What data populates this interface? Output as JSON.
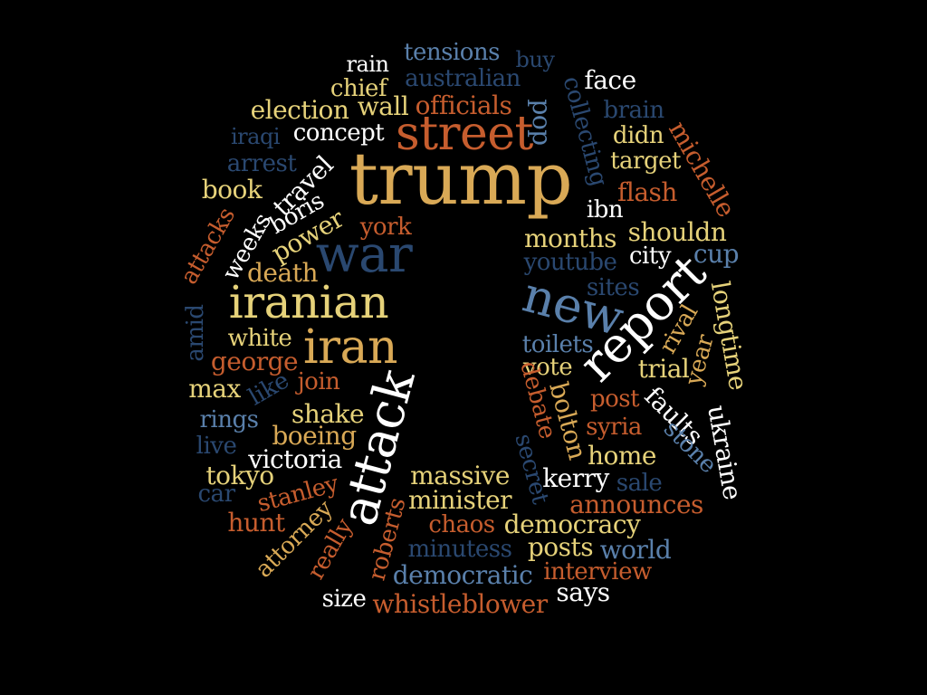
{
  "palette": {
    "background": "#000000",
    "gold": "#d9a956",
    "yellow": "#e6d27a",
    "orange": "#c65d2e",
    "blue": "#5a80ab",
    "navy": "#2a4870",
    "white": "#ffffff"
  },
  "words": [
    {
      "id": "trump",
      "text": "trump",
      "color": "gold"
    },
    {
      "id": "street",
      "text": "street",
      "color": "orange"
    },
    {
      "id": "war",
      "text": "war",
      "color": "navy"
    },
    {
      "id": "iranian",
      "text": "iranian",
      "color": "yellow"
    },
    {
      "id": "iran",
      "text": "iran",
      "color": "gold"
    },
    {
      "id": "attack",
      "text": "attack",
      "color": "white"
    },
    {
      "id": "new",
      "text": "new",
      "color": "blue"
    },
    {
      "id": "report",
      "text": "report",
      "color": "white"
    },
    {
      "id": "tensions",
      "text": "tensions",
      "color": "blue"
    },
    {
      "id": "buy",
      "text": "buy",
      "color": "navy"
    },
    {
      "id": "rain",
      "text": "rain",
      "color": "white"
    },
    {
      "id": "australian",
      "text": "australian",
      "color": "navy"
    },
    {
      "id": "chief",
      "text": "chief",
      "color": "yellow"
    },
    {
      "id": "face",
      "text": "face",
      "color": "white"
    },
    {
      "id": "election",
      "text": "election",
      "color": "yellow"
    },
    {
      "id": "wall",
      "text": "wall",
      "color": "yellow"
    },
    {
      "id": "officials",
      "text": "officials",
      "color": "orange"
    },
    {
      "id": "pop",
      "text": "pop",
      "color": "blue"
    },
    {
      "id": "collecting",
      "text": "collecting",
      "color": "navy"
    },
    {
      "id": "brain",
      "text": "brain",
      "color": "navy"
    },
    {
      "id": "iraqi",
      "text": "iraqi",
      "color": "navy"
    },
    {
      "id": "concept",
      "text": "concept",
      "color": "white"
    },
    {
      "id": "didn",
      "text": "didn",
      "color": "yellow"
    },
    {
      "id": "michelle",
      "text": "michelle",
      "color": "orange"
    },
    {
      "id": "arrest",
      "text": "arrest",
      "color": "navy"
    },
    {
      "id": "target",
      "text": "target",
      "color": "yellow"
    },
    {
      "id": "book",
      "text": "book",
      "color": "yellow"
    },
    {
      "id": "travel",
      "text": "travel",
      "color": "white"
    },
    {
      "id": "flash",
      "text": "flash",
      "color": "orange"
    },
    {
      "id": "boris",
      "text": "boris",
      "color": "white"
    },
    {
      "id": "ibn",
      "text": "ibn",
      "color": "white"
    },
    {
      "id": "attacks",
      "text": "attacks",
      "color": "orange"
    },
    {
      "id": "weeks",
      "text": "weeks",
      "color": "white"
    },
    {
      "id": "power",
      "text": "power",
      "color": "yellow"
    },
    {
      "id": "york",
      "text": "york",
      "color": "orange"
    },
    {
      "id": "months",
      "text": "months",
      "color": "yellow"
    },
    {
      "id": "shouldn",
      "text": "shouldn",
      "color": "yellow"
    },
    {
      "id": "city",
      "text": "city",
      "color": "white"
    },
    {
      "id": "cup",
      "text": "cup",
      "color": "blue"
    },
    {
      "id": "death",
      "text": "death",
      "color": "gold"
    },
    {
      "id": "youtube",
      "text": "youtube",
      "color": "navy"
    },
    {
      "id": "sites",
      "text": "sites",
      "color": "navy"
    },
    {
      "id": "longtime",
      "text": "longtime",
      "color": "yellow"
    },
    {
      "id": "amid",
      "text": "amid",
      "color": "navy"
    },
    {
      "id": "rival",
      "text": "rival",
      "color": "gold"
    },
    {
      "id": "white",
      "text": "white",
      "color": "yellow"
    },
    {
      "id": "toilets",
      "text": "toilets",
      "color": "blue"
    },
    {
      "id": "year",
      "text": "year",
      "color": "gold"
    },
    {
      "id": "george",
      "text": "george",
      "color": "orange"
    },
    {
      "id": "vote",
      "text": "vote",
      "color": "yellow"
    },
    {
      "id": "trial",
      "text": "trial",
      "color": "yellow"
    },
    {
      "id": "join",
      "text": "join",
      "color": "orange"
    },
    {
      "id": "max",
      "text": "max",
      "color": "yellow"
    },
    {
      "id": "like",
      "text": "like",
      "color": "navy"
    },
    {
      "id": "debate",
      "text": "debate",
      "color": "orange"
    },
    {
      "id": "bolton",
      "text": "bolton",
      "color": "gold"
    },
    {
      "id": "post",
      "text": "post",
      "color": "orange"
    },
    {
      "id": "faults",
      "text": "faults",
      "color": "white"
    },
    {
      "id": "rings",
      "text": "rings",
      "color": "blue"
    },
    {
      "id": "shake",
      "text": "shake",
      "color": "yellow"
    },
    {
      "id": "syria",
      "text": "syria",
      "color": "orange"
    },
    {
      "id": "ukraine",
      "text": "ukraine",
      "color": "white"
    },
    {
      "id": "live",
      "text": "live",
      "color": "navy"
    },
    {
      "id": "boeing",
      "text": "boeing",
      "color": "gold"
    },
    {
      "id": "stone",
      "text": "stone",
      "color": "blue"
    },
    {
      "id": "victoria",
      "text": "victoria",
      "color": "white"
    },
    {
      "id": "home",
      "text": "home",
      "color": "yellow"
    },
    {
      "id": "secret",
      "text": "secret",
      "color": "navy"
    },
    {
      "id": "tokyo",
      "text": "tokyo",
      "color": "yellow"
    },
    {
      "id": "massive",
      "text": "massive",
      "color": "yellow"
    },
    {
      "id": "kerry",
      "text": "kerry",
      "color": "white"
    },
    {
      "id": "sale",
      "text": "sale",
      "color": "navy"
    },
    {
      "id": "car",
      "text": "car",
      "color": "navy"
    },
    {
      "id": "stanley",
      "text": "stanley",
      "color": "orange"
    },
    {
      "id": "minister",
      "text": "minister",
      "color": "yellow"
    },
    {
      "id": "announces",
      "text": "announces",
      "color": "orange"
    },
    {
      "id": "hunt",
      "text": "hunt",
      "color": "orange"
    },
    {
      "id": "attorney",
      "text": "attorney",
      "color": "gold"
    },
    {
      "id": "chaos",
      "text": "chaos",
      "color": "orange"
    },
    {
      "id": "democracy",
      "text": "democracy",
      "color": "yellow"
    },
    {
      "id": "roberts",
      "text": "roberts",
      "color": "orange"
    },
    {
      "id": "really",
      "text": "really",
      "color": "orange"
    },
    {
      "id": "minutess",
      "text": "minutess",
      "color": "navy"
    },
    {
      "id": "posts",
      "text": "posts",
      "color": "yellow"
    },
    {
      "id": "world",
      "text": "world",
      "color": "blue"
    },
    {
      "id": "democratic",
      "text": "democratic",
      "color": "blue"
    },
    {
      "id": "interview",
      "text": "interview",
      "color": "orange"
    },
    {
      "id": "size",
      "text": "size",
      "color": "white"
    },
    {
      "id": "says",
      "text": "says",
      "color": "white"
    },
    {
      "id": "whistleblower",
      "text": "whistleblower",
      "color": "orange"
    }
  ]
}
